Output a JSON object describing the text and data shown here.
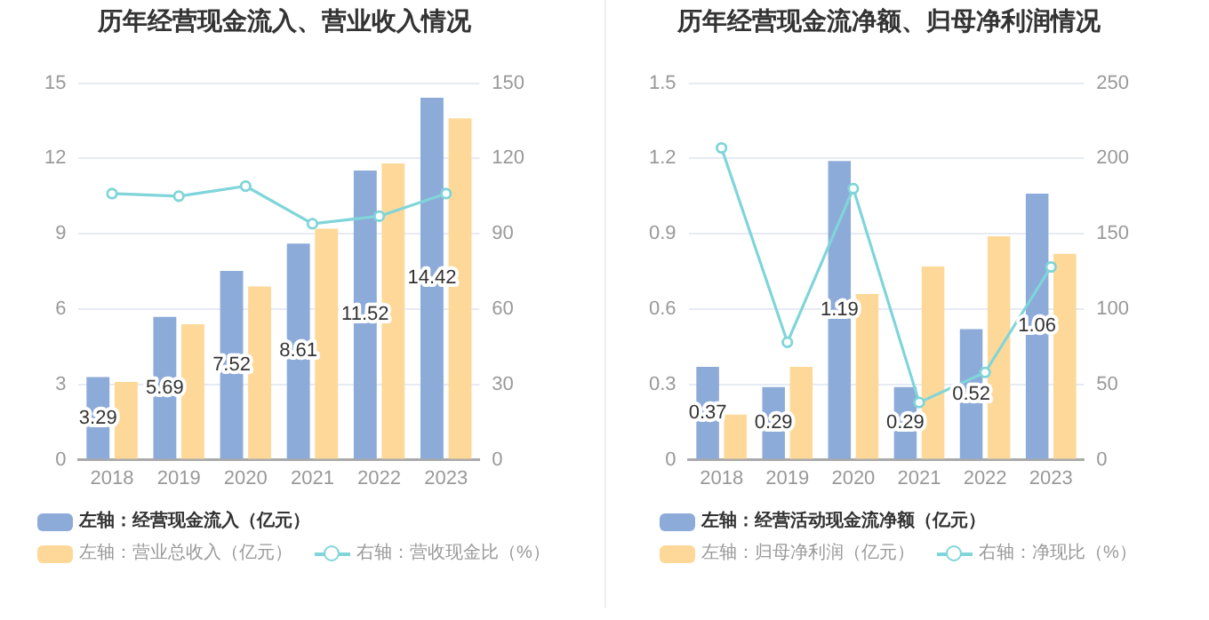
{
  "chart_data": [
    {
      "type": "bar",
      "title": "历年经营现金流入、营业收入情况",
      "categories": [
        "2018",
        "2019",
        "2020",
        "2021",
        "2022",
        "2023"
      ],
      "series": [
        {
          "name": "左轴：经营现金流入（亿元）",
          "color": "#8cabd9",
          "values": [
            3.29,
            5.69,
            7.52,
            8.61,
            11.52,
            14.42
          ],
          "value_labels": [
            "3.29",
            "5.69",
            "7.52",
            "8.61",
            "11.52",
            "14.42"
          ]
        },
        {
          "name": "左轴：营业总收入（亿元）",
          "color": "#fed898",
          "values": [
            3.1,
            5.4,
            6.9,
            9.2,
            11.8,
            13.6
          ]
        },
        {
          "name": "右轴：营收现金比（%）",
          "type": "line",
          "axis": "y2",
          "color": "#7fd5d9",
          "values": [
            106,
            105,
            109,
            94,
            97,
            106
          ]
        }
      ],
      "ylim": [
        0,
        15
      ],
      "yticks": [
        0,
        3,
        6,
        9,
        12,
        15
      ],
      "y2lim": [
        0,
        150
      ],
      "y2ticks": [
        0,
        30,
        60,
        90,
        120,
        150
      ],
      "grid": "y",
      "legend": "bottom",
      "marker": "circle"
    },
    {
      "type": "bar",
      "title": "历年经营现金流净额、归母净利润情况",
      "categories": [
        "2018",
        "2019",
        "2020",
        "2021",
        "2022",
        "2023"
      ],
      "series": [
        {
          "name": "左轴：经营活动现金流净额（亿元）",
          "color": "#8cabd9",
          "values": [
            0.37,
            0.29,
            1.19,
            0.29,
            0.52,
            1.06
          ],
          "value_labels": [
            "0.37",
            "0.29",
            "1.19",
            "0.29",
            "0.52",
            "1.06"
          ]
        },
        {
          "name": "左轴：归母净利润（亿元）",
          "color": "#fed898",
          "values": [
            0.18,
            0.37,
            0.66,
            0.77,
            0.89,
            0.82
          ]
        },
        {
          "name": "右轴：净现比（%）",
          "type": "line",
          "axis": "y2",
          "color": "#7fd5d9",
          "values": [
            207,
            78,
            180,
            38,
            58,
            128
          ]
        }
      ],
      "ylim": [
        0,
        1.5
      ],
      "yticks": [
        0,
        0.3,
        0.6,
        0.9,
        1.2,
        1.5
      ],
      "y2lim": [
        0,
        250
      ],
      "y2ticks": [
        0,
        50,
        100,
        150,
        200,
        250
      ],
      "grid": "y",
      "legend": "bottom",
      "marker": "circle"
    }
  ]
}
